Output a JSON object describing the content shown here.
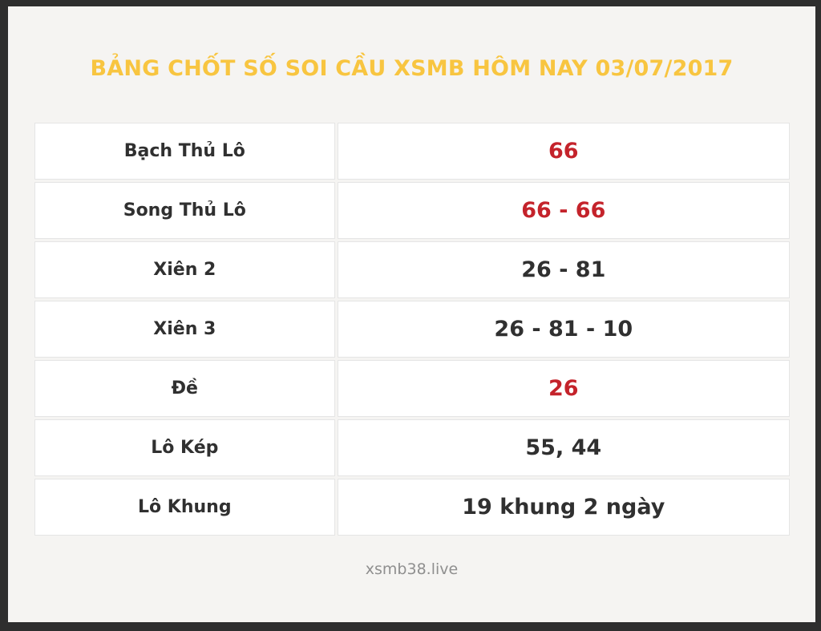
{
  "page": {
    "title": "BẢNG CHỐT SỐ SOI CẦU XSMB HÔM NAY 03/07/2017",
    "footer": "xsmb38.live"
  },
  "colors": {
    "title": "#f8c540",
    "highlight": "#c4232b",
    "text": "#303030",
    "frame": "#2e2e2e",
    "page_background": "#f5f4f2",
    "cell_background": "#ffffff",
    "cell_border": "#e5e5e5",
    "footer_text": "#8f8f8f"
  },
  "table": {
    "rows": [
      {
        "label": "Bạch Thủ Lô",
        "value": "66",
        "highlight": true
      },
      {
        "label": "Song Thủ Lô",
        "value": "66 - 66",
        "highlight": true
      },
      {
        "label": "Xiên 2",
        "value": "26 - 81",
        "highlight": false
      },
      {
        "label": "Xiên 3",
        "value": "26 - 81 - 10",
        "highlight": false
      },
      {
        "label": "Đề",
        "value": "26",
        "highlight": true
      },
      {
        "label": "Lô Kép",
        "value": "55, 44",
        "highlight": false
      },
      {
        "label": "Lô Khung",
        "value": "19 khung 2 ngày",
        "highlight": false
      }
    ]
  }
}
